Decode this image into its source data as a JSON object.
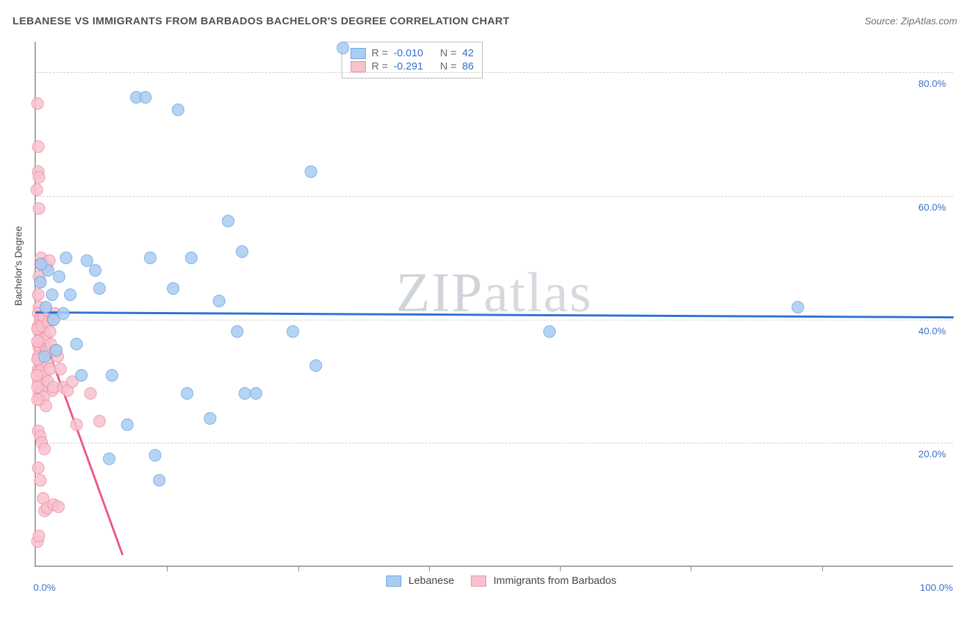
{
  "title": "LEBANESE VS IMMIGRANTS FROM BARBADOS BACHELOR'S DEGREE CORRELATION CHART",
  "source": "Source: ZipAtlas.com",
  "ylabel": "Bachelor's Degree",
  "watermark_a": "ZIP",
  "watermark_b": "atlas",
  "chart": {
    "type": "scatter",
    "xlim": [
      0,
      100
    ],
    "ylim": [
      0,
      85
    ],
    "y_ticks": [
      20,
      40,
      60,
      80
    ],
    "y_tick_labels": [
      "20.0%",
      "40.0%",
      "60.0%",
      "80.0%"
    ],
    "x_ticks_minor": [
      14.3,
      28.6,
      42.9,
      57.1,
      71.4,
      85.7
    ],
    "x_min_label": "0.0%",
    "x_max_label": "100.0%",
    "background_color": "#ffffff",
    "grid_color": "#cfcfcf",
    "point_radius": 9,
    "point_border": 1.3,
    "series": [
      {
        "name": "Lebanese",
        "color_fill": "#a9cdf2",
        "color_stroke": "#6ba3e0",
        "R_label": "R = ",
        "R_value": "-0.010",
        "N_label": "N = ",
        "N_value": "42",
        "trend": {
          "x1": 0,
          "y1": 41.3,
          "x2": 100,
          "y2": 40.5,
          "color": "#2d6fd1",
          "width": 3
        },
        "points": [
          [
            0.5,
            46
          ],
          [
            1.4,
            48
          ],
          [
            1,
            34
          ],
          [
            2,
            40
          ],
          [
            3,
            41
          ],
          [
            3.3,
            50
          ],
          [
            2.6,
            47
          ],
          [
            5,
            31
          ],
          [
            6.5,
            48
          ],
          [
            7,
            45
          ],
          [
            8,
            17.5
          ],
          [
            8.3,
            31
          ],
          [
            10,
            23
          ],
          [
            11,
            76
          ],
          [
            12,
            76
          ],
          [
            12.5,
            50
          ],
          [
            13,
            18
          ],
          [
            13.5,
            14
          ],
          [
            15,
            45
          ],
          [
            15.5,
            74
          ],
          [
            16.5,
            28
          ],
          [
            17,
            50
          ],
          [
            19,
            24
          ],
          [
            20,
            43
          ],
          [
            21,
            56
          ],
          [
            22,
            38
          ],
          [
            22.5,
            51
          ],
          [
            22.8,
            28
          ],
          [
            24,
            28
          ],
          [
            28,
            38
          ],
          [
            30,
            64
          ],
          [
            30.5,
            32.5
          ],
          [
            33.5,
            84
          ],
          [
            56,
            38
          ],
          [
            83,
            42
          ],
          [
            0.6,
            49
          ],
          [
            1.1,
            42
          ],
          [
            1.8,
            44
          ],
          [
            2.3,
            35
          ],
          [
            3.8,
            44
          ],
          [
            4.5,
            36
          ],
          [
            5.6,
            49.5
          ]
        ]
      },
      {
        "name": "Immigrants from Barbados",
        "color_fill": "#f7c2ce",
        "color_stroke": "#ef8fa6",
        "R_label": "R = ",
        "R_value": "-0.291",
        "N_label": "N = ",
        "N_value": "86",
        "trend": {
          "x1": 0,
          "y1": 41,
          "x2": 9.5,
          "y2": 2,
          "color": "#e95687",
          "width": 3
        },
        "points": [
          [
            0.2,
            75
          ],
          [
            0.3,
            68
          ],
          [
            0.3,
            64
          ],
          [
            0.4,
            63
          ],
          [
            0.4,
            58
          ],
          [
            0.5,
            49
          ],
          [
            0.4,
            47
          ],
          [
            0.5,
            46
          ],
          [
            0.3,
            44
          ],
          [
            0.4,
            42
          ],
          [
            0.3,
            41
          ],
          [
            0.5,
            40
          ],
          [
            0.3,
            39
          ],
          [
            0.4,
            38
          ],
          [
            0.5,
            37
          ],
          [
            0.3,
            36
          ],
          [
            0.4,
            35.5
          ],
          [
            0.5,
            35
          ],
          [
            0.3,
            34
          ],
          [
            0.4,
            33.5
          ],
          [
            0.5,
            33
          ],
          [
            0.3,
            32
          ],
          [
            0.4,
            31.5
          ],
          [
            0.5,
            31
          ],
          [
            0.3,
            30
          ],
          [
            0.7,
            32
          ],
          [
            0.8,
            34
          ],
          [
            0.9,
            36
          ],
          [
            1.0,
            38
          ],
          [
            1.1,
            37
          ],
          [
            1.2,
            35
          ],
          [
            1.3,
            33
          ],
          [
            0.8,
            30
          ],
          [
            1.0,
            31
          ],
          [
            1.2,
            29
          ],
          [
            1.4,
            30
          ],
          [
            1.6,
            32
          ],
          [
            1.8,
            28.5
          ],
          [
            2.0,
            29
          ],
          [
            1.5,
            35
          ],
          [
            1.7,
            36
          ],
          [
            0.4,
            28
          ],
          [
            0.5,
            27
          ],
          [
            0.7,
            28.5
          ],
          [
            0.9,
            27.5
          ],
          [
            1.1,
            26
          ],
          [
            0.3,
            22
          ],
          [
            0.5,
            21
          ],
          [
            0.7,
            20
          ],
          [
            1.0,
            19
          ],
          [
            0.3,
            16
          ],
          [
            0.5,
            14
          ],
          [
            0.8,
            11
          ],
          [
            1.0,
            9
          ],
          [
            1.3,
            9.5
          ],
          [
            2.0,
            10
          ],
          [
            2.5,
            9.7
          ],
          [
            0.2,
            4
          ],
          [
            0.4,
            5
          ],
          [
            3.0,
            29
          ],
          [
            3.5,
            28.5
          ],
          [
            4.0,
            30
          ],
          [
            4.5,
            23
          ],
          [
            6,
            28
          ],
          [
            7,
            23.5
          ],
          [
            0.6,
            50
          ],
          [
            0.8,
            49
          ],
          [
            1.2,
            48.5
          ],
          [
            1.5,
            49.5
          ],
          [
            0.15,
            61
          ],
          [
            0.2,
            38.5
          ],
          [
            0.25,
            36.5
          ],
          [
            0.2,
            33.5
          ],
          [
            0.15,
            31
          ],
          [
            0.2,
            29
          ],
          [
            0.25,
            27
          ],
          [
            0.7,
            39
          ],
          [
            0.9,
            40.5
          ],
          [
            1.1,
            41.5
          ],
          [
            1.4,
            39.5
          ],
          [
            1.6,
            38
          ],
          [
            2.2,
            35
          ],
          [
            2.4,
            34
          ],
          [
            2.7,
            32
          ],
          [
            1.9,
            40
          ],
          [
            2.1,
            41
          ]
        ]
      }
    ]
  },
  "legend_bottom": {
    "a": "Lebanese",
    "b": "Immigrants from Barbados"
  }
}
